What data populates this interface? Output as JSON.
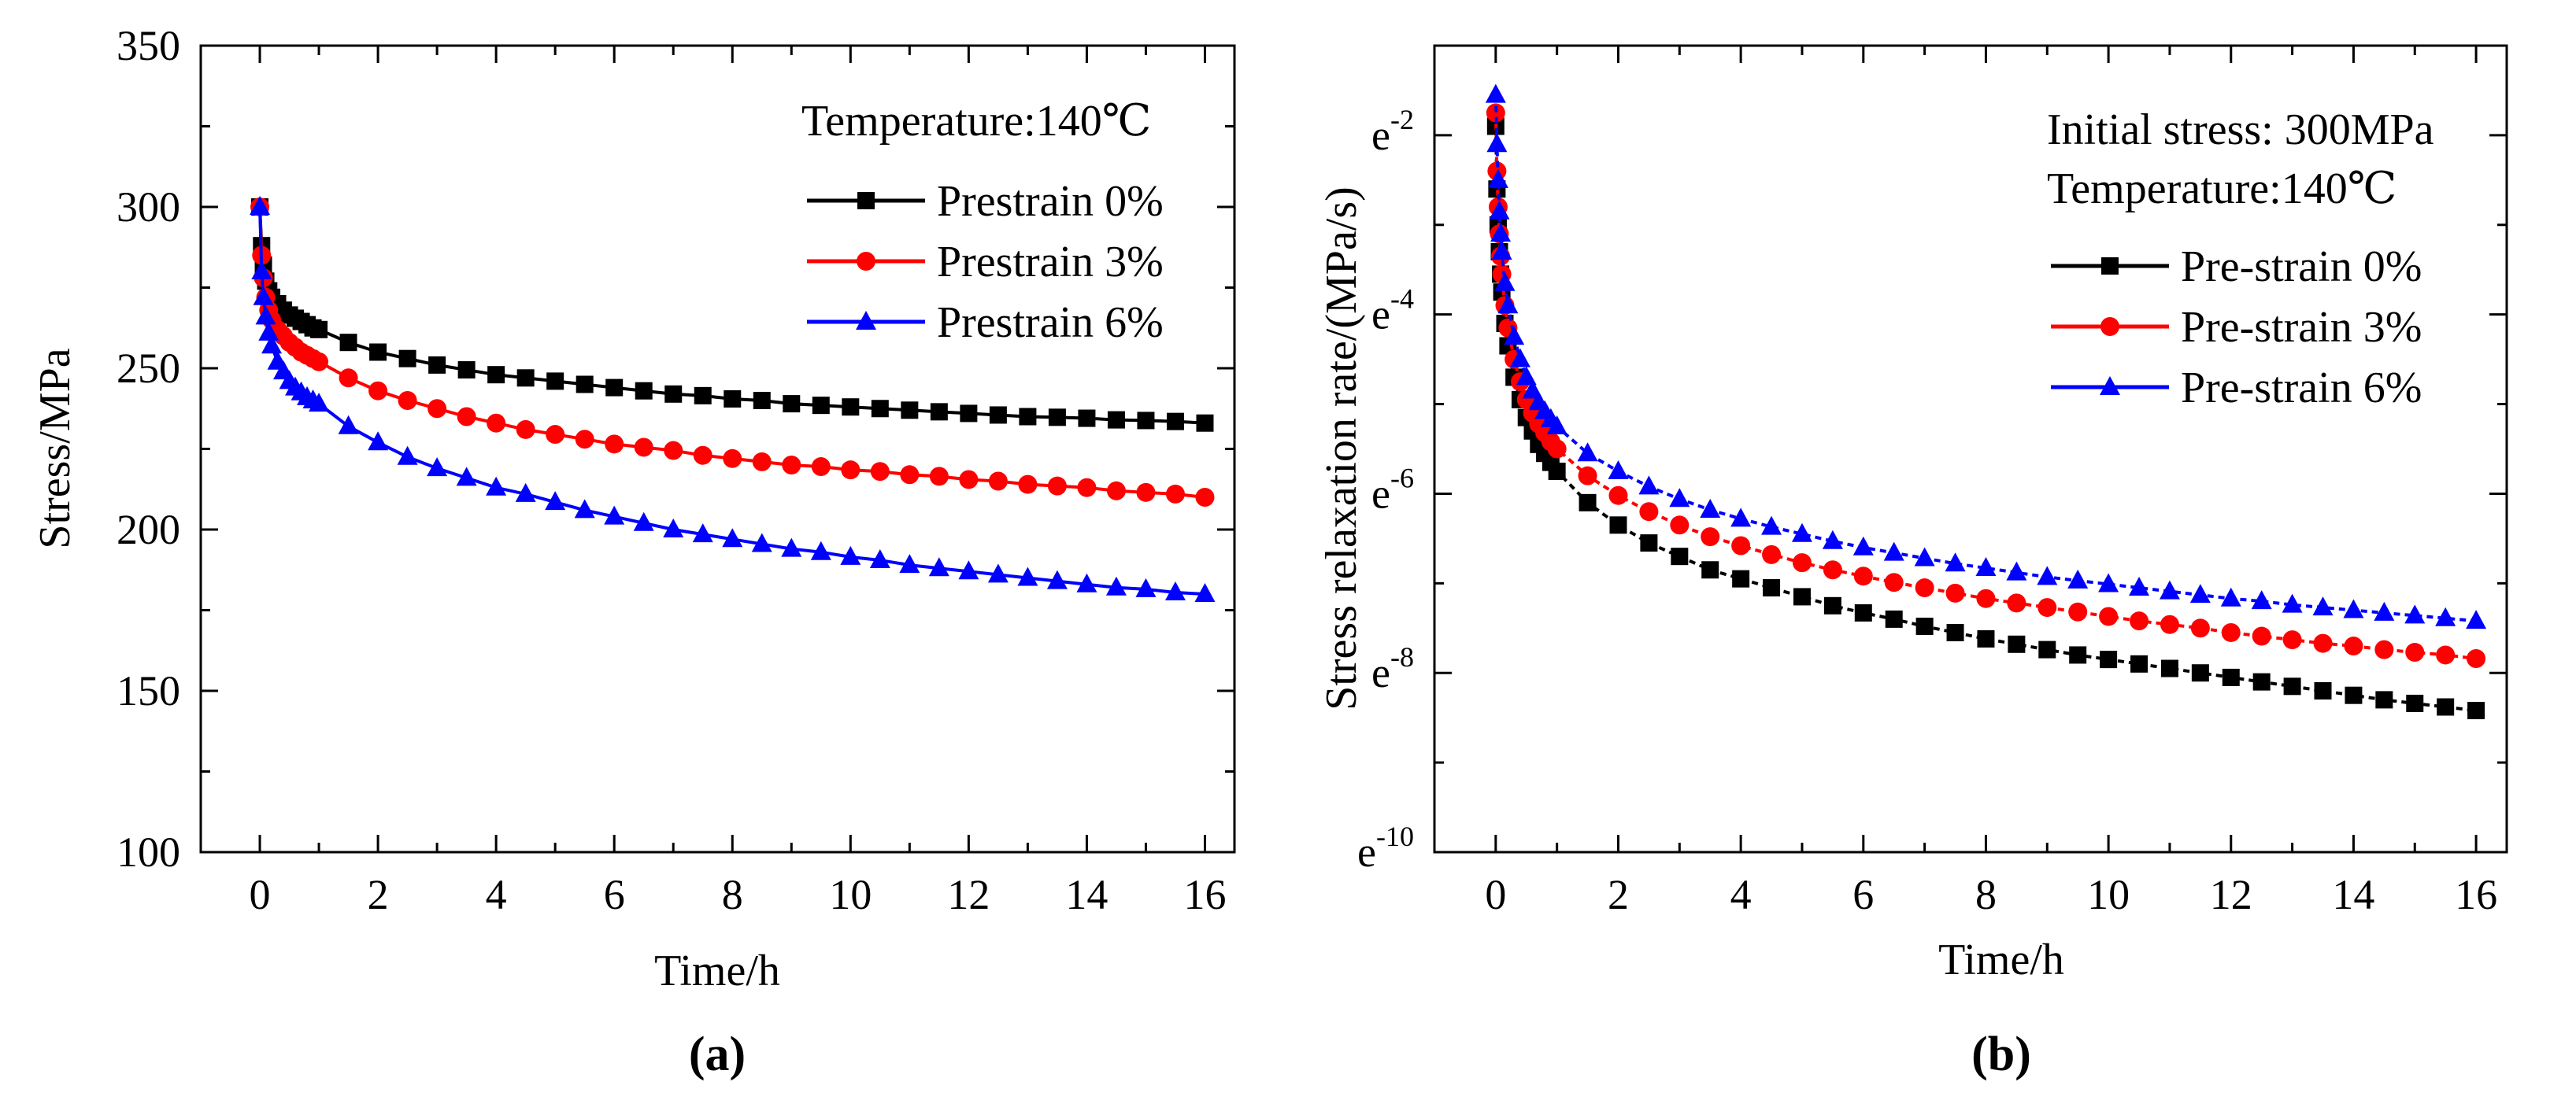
{
  "chart_data": [
    {
      "id": "a",
      "type": "line",
      "caption": "(a)",
      "xlabel": "Time/h",
      "ylabel": "Stress/MPa",
      "xlim": [
        -1,
        16.5
      ],
      "ylim": [
        100,
        350
      ],
      "xticks": [
        0,
        2,
        4,
        6,
        8,
        10,
        12,
        14,
        16
      ],
      "xtick_labels": [
        "0",
        "2",
        "4",
        "6",
        "8",
        "10",
        "12",
        "14",
        "16"
      ],
      "yticks": [
        100,
        150,
        200,
        250,
        300,
        350
      ],
      "ytick_labels": [
        "100",
        "150",
        "200",
        "250",
        "300",
        "350"
      ],
      "legend_title": "Temperature:140℃",
      "legend_position": "top-right",
      "series": [
        {
          "name": "Prestrain 0%",
          "color": "#000000",
          "marker": "square",
          "x": [
            0,
            0.03,
            0.06,
            0.1,
            0.15,
            0.2,
            0.3,
            0.4,
            0.5,
            0.6,
            0.7,
            0.8,
            0.9,
            1.0,
            1.5,
            2,
            2.5,
            3,
            3.5,
            4,
            4.5,
            5,
            5.5,
            6,
            6.5,
            7,
            7.5,
            8,
            8.5,
            9,
            9.5,
            10,
            10.5,
            11,
            11.5,
            12,
            12.5,
            13,
            13.5,
            14,
            14.5,
            15,
            15.5,
            16
          ],
          "y": [
            300,
            288,
            282,
            277,
            274,
            272,
            270,
            268,
            266.5,
            265.5,
            264.5,
            263.5,
            262.5,
            262,
            258,
            255,
            253,
            251,
            249.5,
            248,
            247,
            246,
            245,
            244,
            243,
            242,
            241.5,
            240.5,
            240,
            239,
            238.5,
            238,
            237.5,
            237,
            236.5,
            236,
            235.5,
            235,
            234.8,
            234.5,
            234,
            233.8,
            233.5,
            233
          ]
        },
        {
          "name": "Prestrain 3%",
          "color": "#ff0000",
          "marker": "circle",
          "x": [
            0,
            0.03,
            0.06,
            0.1,
            0.15,
            0.2,
            0.3,
            0.4,
            0.5,
            0.6,
            0.7,
            0.8,
            0.9,
            1.0,
            1.5,
            2,
            2.5,
            3,
            3.5,
            4,
            4.5,
            5,
            5.5,
            6,
            6.5,
            7,
            7.5,
            8,
            8.5,
            9,
            9.5,
            10,
            10.5,
            11,
            11.5,
            12,
            12.5,
            13,
            13.5,
            14,
            14.5,
            15,
            15.5,
            16
          ],
          "y": [
            300,
            285,
            278,
            272,
            268,
            265,
            262,
            260,
            258,
            256.5,
            255,
            254,
            253,
            252,
            247,
            243,
            240,
            237.5,
            235,
            233,
            231,
            229.5,
            228,
            226.5,
            225.5,
            224.5,
            223,
            222,
            221,
            220,
            219.5,
            218.5,
            218,
            217,
            216.5,
            215.5,
            215,
            214,
            213.5,
            213,
            212,
            211.5,
            211,
            210
          ]
        },
        {
          "name": "Prestrain 6%",
          "color": "#0000ff",
          "marker": "triangle",
          "x": [
            0,
            0.03,
            0.06,
            0.1,
            0.15,
            0.2,
            0.3,
            0.4,
            0.5,
            0.6,
            0.7,
            0.8,
            0.9,
            1.0,
            1.5,
            2,
            2.5,
            3,
            3.5,
            4,
            4.5,
            5,
            5.5,
            6,
            6.5,
            7,
            7.5,
            8,
            8.5,
            9,
            9.5,
            10,
            10.5,
            11,
            11.5,
            12,
            12.5,
            13,
            13.5,
            14,
            14.5,
            15,
            15.5,
            16
          ],
          "y": [
            300,
            280,
            272,
            266,
            261,
            257,
            252,
            249,
            246,
            244,
            242.5,
            241,
            240,
            239,
            232,
            227,
            222.5,
            219,
            216,
            213,
            211,
            208.5,
            206,
            204,
            202,
            200,
            198.5,
            197,
            195.5,
            194,
            193,
            191.5,
            190.5,
            189,
            188,
            187,
            186,
            185,
            184,
            183,
            182,
            181.5,
            180.5,
            180
          ]
        }
      ]
    },
    {
      "id": "b",
      "type": "line",
      "caption": "(b)",
      "xlabel": "Time/h",
      "ylabel": "Stress relaxation rate/(MPa/s)",
      "xscale": "linear",
      "yscale": "natural-log",
      "xlim": [
        -1,
        16.5
      ],
      "ylim_exponent": [
        -10,
        -1
      ],
      "xticks": [
        0,
        2,
        4,
        6,
        8,
        10,
        12,
        14,
        16
      ],
      "xtick_labels": [
        "0",
        "2",
        "4",
        "6",
        "8",
        "10",
        "12",
        "14",
        "16"
      ],
      "ytick_exponents": [
        -10,
        -8,
        -6,
        -4,
        -2
      ],
      "ytick_base": "e",
      "ytick_labels": [
        "-10",
        "-8",
        "-6",
        "-4",
        "-2"
      ],
      "legend_title_1": "Initial stress: 300MPa",
      "legend_title_2": "Temperature:140℃",
      "legend_position": "top-right",
      "series": [
        {
          "name": "Pre-strain 0%",
          "color": "#000000",
          "marker": "square",
          "x": [
            0,
            0.02,
            0.04,
            0.06,
            0.08,
            0.1,
            0.15,
            0.2,
            0.3,
            0.4,
            0.5,
            0.6,
            0.7,
            0.8,
            0.9,
            1.0,
            1.5,
            2,
            2.5,
            3,
            3.5,
            4,
            4.5,
            5,
            5.5,
            6,
            6.5,
            7,
            7.5,
            8,
            8.5,
            9,
            9.5,
            10,
            10.5,
            11,
            11.5,
            12,
            12.5,
            13,
            13.5,
            14,
            14.5,
            15,
            15.5,
            16
          ],
          "ln_y": [
            -1.9,
            -2.6,
            -3.0,
            -3.3,
            -3.55,
            -3.75,
            -4.1,
            -4.35,
            -4.7,
            -4.95,
            -5.15,
            -5.3,
            -5.45,
            -5.55,
            -5.65,
            -5.75,
            -6.1,
            -6.35,
            -6.55,
            -6.7,
            -6.85,
            -6.95,
            -7.05,
            -7.15,
            -7.25,
            -7.33,
            -7.4,
            -7.48,
            -7.55,
            -7.62,
            -7.68,
            -7.74,
            -7.8,
            -7.85,
            -7.9,
            -7.95,
            -8.0,
            -8.05,
            -8.1,
            -8.15,
            -8.2,
            -8.25,
            -8.3,
            -8.34,
            -8.38,
            -8.42
          ]
        },
        {
          "name": "Pre-strain 3%",
          "color": "#ff0000",
          "marker": "circle",
          "x": [
            0,
            0.02,
            0.04,
            0.06,
            0.08,
            0.1,
            0.15,
            0.2,
            0.3,
            0.4,
            0.5,
            0.6,
            0.7,
            0.8,
            0.9,
            1.0,
            1.5,
            2,
            2.5,
            3,
            3.5,
            4,
            4.5,
            5,
            5.5,
            6,
            6.5,
            7,
            7.5,
            8,
            8.5,
            9,
            9.5,
            10,
            10.5,
            11,
            11.5,
            12,
            12.5,
            13,
            13.5,
            14,
            14.5,
            15,
            15.5,
            16
          ],
          "ln_y": [
            -1.75,
            -2.4,
            -2.8,
            -3.1,
            -3.35,
            -3.55,
            -3.9,
            -4.15,
            -4.5,
            -4.75,
            -4.95,
            -5.1,
            -5.22,
            -5.32,
            -5.42,
            -5.5,
            -5.8,
            -6.02,
            -6.2,
            -6.35,
            -6.48,
            -6.58,
            -6.68,
            -6.77,
            -6.85,
            -6.92,
            -6.99,
            -7.05,
            -7.11,
            -7.17,
            -7.22,
            -7.27,
            -7.32,
            -7.37,
            -7.42,
            -7.46,
            -7.5,
            -7.55,
            -7.59,
            -7.63,
            -7.67,
            -7.7,
            -7.74,
            -7.77,
            -7.8,
            -7.84
          ]
        },
        {
          "name": "Pre-strain 6%",
          "color": "#0000ff",
          "marker": "triangle",
          "x": [
            0,
            0.02,
            0.04,
            0.06,
            0.08,
            0.1,
            0.15,
            0.2,
            0.3,
            0.4,
            0.5,
            0.6,
            0.7,
            0.8,
            0.9,
            1.0,
            1.5,
            2,
            2.5,
            3,
            3.5,
            4,
            4.5,
            5,
            5.5,
            6,
            6.5,
            7,
            7.5,
            8,
            8.5,
            9,
            9.5,
            10,
            10.5,
            11,
            11.5,
            12,
            12.5,
            13,
            13.5,
            14,
            14.5,
            15,
            15.5,
            16
          ],
          "ln_y": [
            -1.55,
            -2.1,
            -2.5,
            -2.85,
            -3.1,
            -3.3,
            -3.65,
            -3.9,
            -4.25,
            -4.5,
            -4.7,
            -4.85,
            -4.98,
            -5.08,
            -5.17,
            -5.25,
            -5.55,
            -5.75,
            -5.92,
            -6.06,
            -6.18,
            -6.28,
            -6.37,
            -6.45,
            -6.53,
            -6.6,
            -6.66,
            -6.72,
            -6.78,
            -6.83,
            -6.88,
            -6.93,
            -6.97,
            -7.01,
            -7.05,
            -7.09,
            -7.13,
            -7.17,
            -7.2,
            -7.24,
            -7.27,
            -7.3,
            -7.33,
            -7.36,
            -7.39,
            -7.42
          ]
        }
      ]
    }
  ]
}
